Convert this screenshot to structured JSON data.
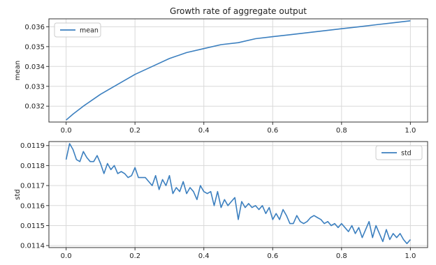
{
  "title": "Growth rate of aggregate output",
  "colors": {
    "line": "#3b7fbf",
    "grid": "#d9d9d9",
    "frame": "#333333"
  },
  "chart_data": [
    {
      "type": "line",
      "ylabel": "mean",
      "xlabel": "",
      "xlim": [
        -0.05,
        1.05
      ],
      "ylim": [
        0.0312,
        0.0364
      ],
      "xticks": [
        "0.0",
        "0.2",
        "0.4",
        "0.6",
        "0.8",
        "1.0"
      ],
      "yticks": [
        "0.032",
        "0.033",
        "0.034",
        "0.035",
        "0.036"
      ],
      "legend": "upper left",
      "grid": true,
      "series": [
        {
          "name": "mean",
          "x": [
            0.0,
            0.02,
            0.05,
            0.1,
            0.15,
            0.2,
            0.25,
            0.3,
            0.35,
            0.4,
            0.45,
            0.5,
            0.55,
            0.6,
            0.65,
            0.7,
            0.75,
            0.8,
            0.85,
            0.9,
            0.95,
            1.0
          ],
          "y": [
            0.0313,
            0.0316,
            0.032,
            0.0326,
            0.0331,
            0.0336,
            0.034,
            0.0344,
            0.0347,
            0.0349,
            0.0351,
            0.0352,
            0.0354,
            0.0355,
            0.0356,
            0.0357,
            0.0358,
            0.0359,
            0.036,
            0.0361,
            0.0362,
            0.0363
          ]
        }
      ]
    },
    {
      "type": "line",
      "ylabel": "std",
      "xlabel": "",
      "xlim": [
        -0.05,
        1.05
      ],
      "ylim": [
        0.01139,
        0.01192
      ],
      "xticks": [
        "0.0",
        "0.2",
        "0.4",
        "0.6",
        "0.8",
        "1.0"
      ],
      "yticks": [
        "0.0114",
        "0.0115",
        "0.0116",
        "0.0117",
        "0.0118",
        "0.0119"
      ],
      "legend": "upper right",
      "grid": true,
      "series": [
        {
          "name": "std",
          "x": [
            0.0,
            0.01,
            0.02,
            0.03,
            0.04,
            0.05,
            0.06,
            0.07,
            0.08,
            0.09,
            0.1,
            0.11,
            0.12,
            0.13,
            0.14,
            0.15,
            0.16,
            0.17,
            0.18,
            0.19,
            0.2,
            0.21,
            0.22,
            0.23,
            0.24,
            0.25,
            0.26,
            0.27,
            0.28,
            0.29,
            0.3,
            0.31,
            0.32,
            0.33,
            0.34,
            0.35,
            0.36,
            0.37,
            0.38,
            0.39,
            0.4,
            0.41,
            0.42,
            0.43,
            0.44,
            0.45,
            0.46,
            0.47,
            0.48,
            0.49,
            0.5,
            0.51,
            0.52,
            0.53,
            0.54,
            0.55,
            0.56,
            0.57,
            0.58,
            0.59,
            0.6,
            0.61,
            0.62,
            0.63,
            0.64,
            0.65,
            0.66,
            0.67,
            0.68,
            0.69,
            0.7,
            0.71,
            0.72,
            0.73,
            0.74,
            0.75,
            0.76,
            0.77,
            0.78,
            0.79,
            0.8,
            0.81,
            0.82,
            0.83,
            0.84,
            0.85,
            0.86,
            0.87,
            0.88,
            0.89,
            0.9,
            0.91,
            0.92,
            0.93,
            0.94,
            0.95,
            0.96,
            0.97,
            0.98,
            0.99,
            1.0
          ],
          "y": [
            0.01183,
            0.01191,
            0.01188,
            0.01183,
            0.01182,
            0.01187,
            0.01184,
            0.01182,
            0.01182,
            0.01185,
            0.01181,
            0.01176,
            0.01181,
            0.01178,
            0.0118,
            0.01176,
            0.01177,
            0.01176,
            0.01174,
            0.01175,
            0.01179,
            0.01174,
            0.01174,
            0.01174,
            0.01172,
            0.0117,
            0.01175,
            0.01168,
            0.01173,
            0.0117,
            0.01175,
            0.01166,
            0.01169,
            0.01167,
            0.01172,
            0.01166,
            0.01169,
            0.01167,
            0.01163,
            0.0117,
            0.01167,
            0.01166,
            0.01167,
            0.0116,
            0.01167,
            0.01159,
            0.01163,
            0.0116,
            0.01162,
            0.01164,
            0.01153,
            0.01162,
            0.01159,
            0.01161,
            0.01159,
            0.0116,
            0.01158,
            0.0116,
            0.01156,
            0.01159,
            0.01153,
            0.01156,
            0.01153,
            0.01158,
            0.01155,
            0.01151,
            0.01151,
            0.01155,
            0.01152,
            0.01151,
            0.01152,
            0.01154,
            0.01155,
            0.01154,
            0.01153,
            0.01151,
            0.01152,
            0.0115,
            0.01151,
            0.01149,
            0.01151,
            0.01149,
            0.01147,
            0.0115,
            0.01146,
            0.01149,
            0.01144,
            0.01148,
            0.01152,
            0.01144,
            0.0115,
            0.01146,
            0.01142,
            0.01148,
            0.01143,
            0.01146,
            0.01144,
            0.01146,
            0.01143,
            0.01141,
            0.01143
          ]
        }
      ]
    }
  ]
}
